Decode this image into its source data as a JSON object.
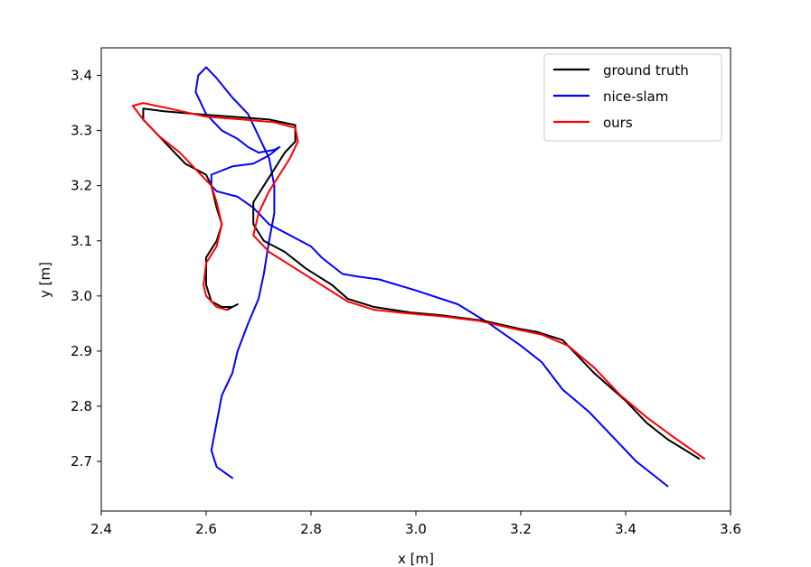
{
  "chart_data": {
    "type": "line",
    "xlabel": "x [m]",
    "ylabel": "y [m]",
    "xlim": [
      2.4,
      3.6
    ],
    "ylim": [
      2.61,
      3.45
    ],
    "xticks": [
      "2.4",
      "2.6",
      "2.8",
      "3.0",
      "3.2",
      "3.4",
      "3.6"
    ],
    "yticks": [
      "2.7",
      "2.8",
      "2.9",
      "3.0",
      "3.1",
      "3.2",
      "3.3",
      "3.4"
    ],
    "grid": false,
    "legend_position": "top-right",
    "series": [
      {
        "name": "ground truth",
        "color": "#000000",
        "points": [
          [
            3.54,
            2.705
          ],
          [
            3.48,
            2.74
          ],
          [
            3.44,
            2.77
          ],
          [
            3.4,
            2.81
          ],
          [
            3.34,
            2.86
          ],
          [
            3.28,
            2.92
          ],
          [
            3.23,
            2.935
          ],
          [
            3.2,
            2.94
          ],
          [
            3.13,
            2.955
          ],
          [
            3.05,
            2.965
          ],
          [
            2.99,
            2.97
          ],
          [
            2.92,
            2.98
          ],
          [
            2.87,
            2.995
          ],
          [
            2.84,
            3.02
          ],
          [
            2.79,
            3.05
          ],
          [
            2.75,
            3.08
          ],
          [
            2.71,
            3.1
          ],
          [
            2.69,
            3.13
          ],
          [
            2.69,
            3.17
          ],
          [
            2.71,
            3.2
          ],
          [
            2.73,
            3.23
          ],
          [
            2.75,
            3.26
          ],
          [
            2.77,
            3.28
          ],
          [
            2.77,
            3.31
          ],
          [
            2.72,
            3.32
          ],
          [
            2.65,
            3.325
          ],
          [
            2.58,
            3.33
          ],
          [
            2.52,
            3.335
          ],
          [
            2.48,
            3.34
          ],
          [
            2.48,
            3.32
          ],
          [
            2.5,
            3.3
          ],
          [
            2.53,
            3.27
          ],
          [
            2.56,
            3.24
          ],
          [
            2.6,
            3.22
          ],
          [
            2.61,
            3.2
          ],
          [
            2.62,
            3.16
          ],
          [
            2.63,
            3.13
          ],
          [
            2.62,
            3.1
          ],
          [
            2.6,
            3.07
          ],
          [
            2.6,
            3.04
          ],
          [
            2.6,
            3.02
          ],
          [
            2.61,
            2.99
          ],
          [
            2.63,
            2.98
          ],
          [
            2.65,
            2.98
          ],
          [
            2.64,
            2.975
          ],
          [
            2.66,
            2.985
          ]
        ]
      },
      {
        "name": "nice-slam",
        "color": "#0000ff",
        "points": [
          [
            3.48,
            2.655
          ],
          [
            3.42,
            2.7
          ],
          [
            3.38,
            2.74
          ],
          [
            3.33,
            2.79
          ],
          [
            3.28,
            2.83
          ],
          [
            3.24,
            2.88
          ],
          [
            3.2,
            2.91
          ],
          [
            3.14,
            2.95
          ],
          [
            3.08,
            2.985
          ],
          [
            3.0,
            3.01
          ],
          [
            2.93,
            3.03
          ],
          [
            2.89,
            3.035
          ],
          [
            2.86,
            3.04
          ],
          [
            2.82,
            3.07
          ],
          [
            2.8,
            3.09
          ],
          [
            2.76,
            3.11
          ],
          [
            2.72,
            3.13
          ],
          [
            2.69,
            3.16
          ],
          [
            2.66,
            3.18
          ],
          [
            2.62,
            3.19
          ],
          [
            2.61,
            3.2
          ],
          [
            2.61,
            3.22
          ],
          [
            2.65,
            3.235
          ],
          [
            2.69,
            3.24
          ],
          [
            2.72,
            3.255
          ],
          [
            2.74,
            3.27
          ],
          [
            2.73,
            3.265
          ],
          [
            2.7,
            3.26
          ],
          [
            2.68,
            3.27
          ],
          [
            2.66,
            3.285
          ],
          [
            2.63,
            3.3
          ],
          [
            2.6,
            3.33
          ],
          [
            2.58,
            3.37
          ],
          [
            2.585,
            3.4
          ],
          [
            2.6,
            3.415
          ],
          [
            2.62,
            3.395
          ],
          [
            2.65,
            3.36
          ],
          [
            2.68,
            3.33
          ],
          [
            2.7,
            3.29
          ],
          [
            2.72,
            3.25
          ],
          [
            2.73,
            3.2
          ],
          [
            2.73,
            3.15
          ],
          [
            2.72,
            3.1
          ],
          [
            2.71,
            3.04
          ],
          [
            2.7,
            2.995
          ],
          [
            2.68,
            2.95
          ],
          [
            2.66,
            2.9
          ],
          [
            2.65,
            2.86
          ],
          [
            2.63,
            2.82
          ],
          [
            2.62,
            2.77
          ],
          [
            2.61,
            2.72
          ],
          [
            2.62,
            2.69
          ],
          [
            2.65,
            2.67
          ]
        ]
      },
      {
        "name": "ours",
        "color": "#ff0000",
        "points": [
          [
            3.55,
            2.705
          ],
          [
            3.49,
            2.745
          ],
          [
            3.44,
            2.78
          ],
          [
            3.39,
            2.82
          ],
          [
            3.34,
            2.87
          ],
          [
            3.29,
            2.91
          ],
          [
            3.24,
            2.93
          ],
          [
            3.19,
            2.94
          ],
          [
            3.12,
            2.955
          ],
          [
            3.05,
            2.963
          ],
          [
            2.99,
            2.968
          ],
          [
            2.92,
            2.975
          ],
          [
            2.87,
            2.99
          ],
          [
            2.82,
            3.02
          ],
          [
            2.77,
            3.05
          ],
          [
            2.72,
            3.08
          ],
          [
            2.69,
            3.11
          ],
          [
            2.7,
            3.15
          ],
          [
            2.72,
            3.19
          ],
          [
            2.74,
            3.22
          ],
          [
            2.76,
            3.25
          ],
          [
            2.775,
            3.28
          ],
          [
            2.77,
            3.305
          ],
          [
            2.73,
            3.315
          ],
          [
            2.67,
            3.32
          ],
          [
            2.6,
            3.325
          ],
          [
            2.53,
            3.34
          ],
          [
            2.48,
            3.35
          ],
          [
            2.46,
            3.345
          ],
          [
            2.48,
            3.32
          ],
          [
            2.51,
            3.29
          ],
          [
            2.55,
            3.26
          ],
          [
            2.58,
            3.23
          ],
          [
            2.61,
            3.2
          ],
          [
            2.62,
            3.17
          ],
          [
            2.63,
            3.13
          ],
          [
            2.62,
            3.09
          ],
          [
            2.6,
            3.06
          ],
          [
            2.595,
            3.02
          ],
          [
            2.6,
            3.0
          ],
          [
            2.62,
            2.98
          ],
          [
            2.64,
            2.975
          ]
        ]
      }
    ]
  }
}
